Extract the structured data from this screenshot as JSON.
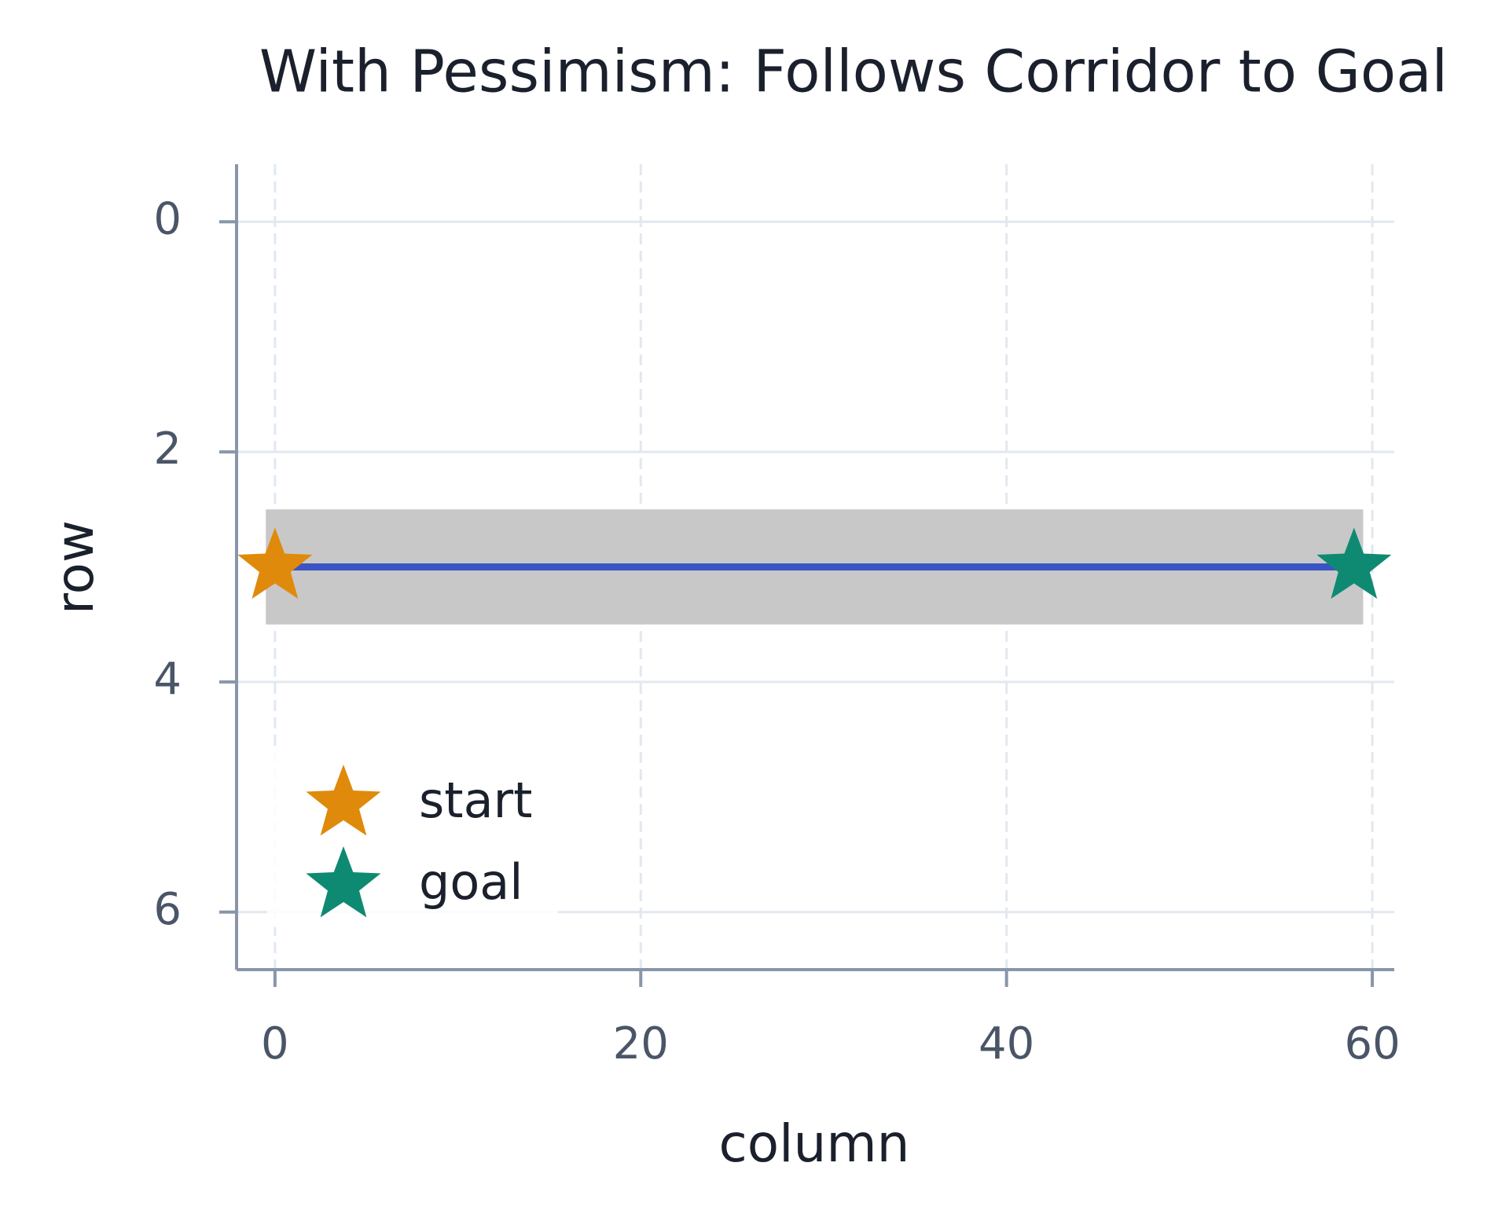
{
  "chart_data": {
    "type": "line",
    "title": "With Pessimism: Follows Corridor to Goal",
    "xlabel": "column",
    "ylabel": "row",
    "xlim": [
      -2.1,
      61.2
    ],
    "ylim": [
      6.5,
      -0.5
    ],
    "xticks": [
      0,
      20,
      40,
      60
    ],
    "yticks": [
      0,
      2,
      4,
      6
    ],
    "grid": true,
    "legend": "lower left",
    "corridor": {
      "row": 3,
      "col_start": 0,
      "col_end": 59,
      "color": "#c8c8c8"
    },
    "path": {
      "color": "#3b54c4",
      "x": [
        0,
        59
      ],
      "y": [
        3,
        3
      ]
    },
    "markers": [
      {
        "name": "start",
        "color": "#e08a0b",
        "x": 0,
        "y": 3
      },
      {
        "name": "goal",
        "color": "#0f8a72",
        "x": 59,
        "y": 3
      }
    ]
  }
}
